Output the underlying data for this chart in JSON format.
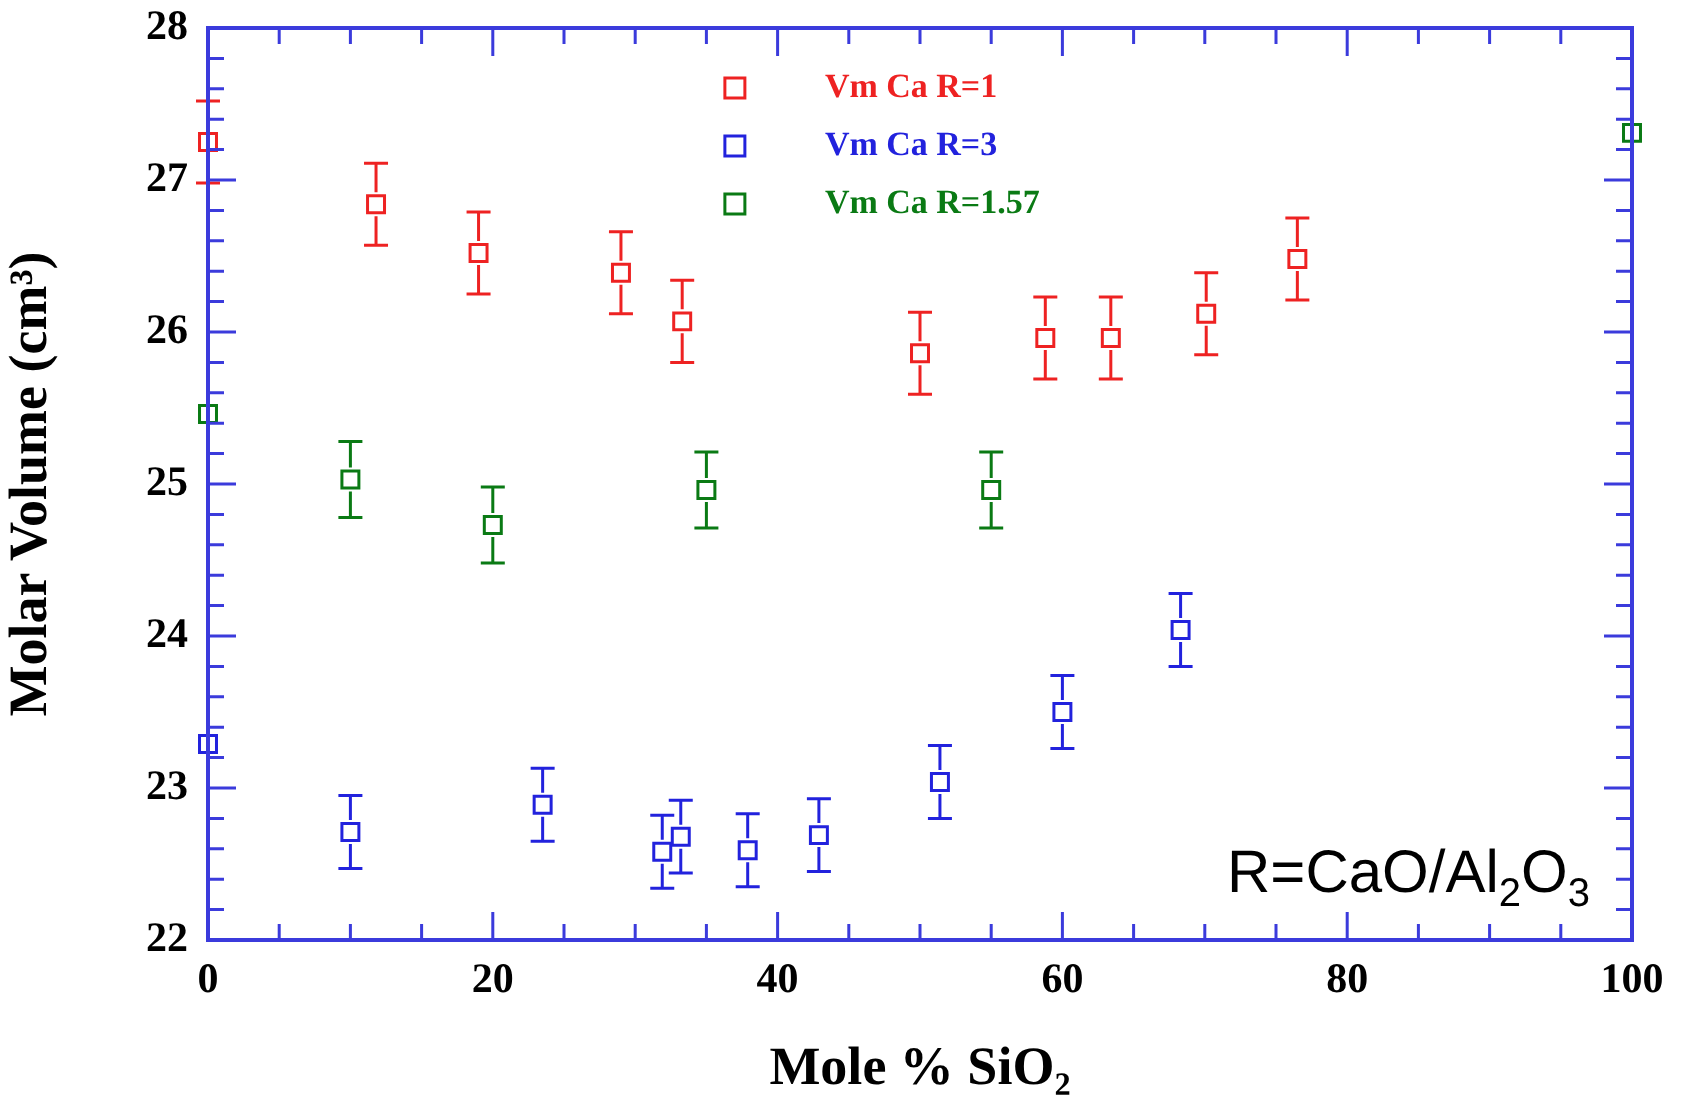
{
  "chart_data": {
    "type": "scatter",
    "xlabel": "Mole % SiO₂",
    "ylabel": "Molar Volume (cm³)",
    "xlim": [
      0,
      100
    ],
    "ylim": [
      22,
      28
    ],
    "xticks": [
      0,
      {
        "value": 5,
        "label": null
      },
      {
        "value": 10,
        "label": null
      },
      {
        "value": 15,
        "label": null
      },
      20,
      {
        "value": 25,
        "label": null
      },
      {
        "value": 30,
        "label": null
      },
      {
        "value": 35,
        "label": null
      },
      40,
      {
        "value": 45,
        "label": null
      },
      {
        "value": 50,
        "label": null
      },
      {
        "value": 55,
        "label": null
      },
      60,
      {
        "value": 65,
        "label": null
      },
      {
        "value": 70,
        "label": null
      },
      {
        "value": 75,
        "label": null
      },
      80,
      {
        "value": 85,
        "label": null
      },
      {
        "value": 90,
        "label": null
      },
      {
        "value": 95,
        "label": null
      },
      100
    ],
    "yticks": [
      22,
      {
        "value": 22.2,
        "label": null
      },
      {
        "value": 22.4,
        "label": null
      },
      {
        "value": 22.6,
        "label": null
      },
      {
        "value": 22.8,
        "label": null
      },
      23,
      {
        "value": 23.2,
        "label": null
      },
      {
        "value": 23.4,
        "label": null
      },
      {
        "value": 23.6,
        "label": null
      },
      {
        "value": 23.8,
        "label": null
      },
      24,
      {
        "value": 24.2,
        "label": null
      },
      {
        "value": 24.4,
        "label": null
      },
      {
        "value": 24.6,
        "label": null
      },
      {
        "value": 24.8,
        "label": null
      },
      25,
      {
        "value": 25.2,
        "label": null
      },
      {
        "value": 25.4,
        "label": null
      },
      {
        "value": 25.6,
        "label": null
      },
      {
        "value": 25.8,
        "label": null
      },
      26,
      {
        "value": 26.2,
        "label": null
      },
      {
        "value": 26.4,
        "label": null
      },
      {
        "value": 26.6,
        "label": null
      },
      {
        "value": 26.8,
        "label": null
      },
      27,
      {
        "value": 27.2,
        "label": null
      },
      {
        "value": 27.4,
        "label": null
      },
      {
        "value": 27.6,
        "label": null
      },
      {
        "value": 27.8,
        "label": null
      },
      28
    ],
    "grid": false,
    "legend": "top",
    "marker": "square",
    "series": [
      {
        "name": "Vm Ca R=1",
        "color": "#ee2222",
        "x": [
          0,
          11.8,
          19,
          29,
          33.3,
          50,
          58.8,
          63.4,
          70.1,
          76.5
        ],
        "values": [
          27.25,
          26.84,
          26.52,
          26.39,
          26.07,
          25.86,
          25.96,
          25.96,
          26.12,
          26.48
        ],
        "errors": [
          0.27,
          0.27,
          0.27,
          0.27,
          0.27,
          0.27,
          0.27,
          0.27,
          0.27,
          0.27
        ]
      },
      {
        "name": "Vm Ca R=3",
        "color": "#2222dd",
        "x": [
          0,
          10,
          23.5,
          31.9,
          33.2,
          37.9,
          42.9,
          51.4,
          60,
          68.3
        ],
        "values": [
          23.29,
          22.71,
          22.89,
          22.58,
          22.68,
          22.59,
          22.69,
          23.04,
          23.5,
          24.04
        ],
        "errors": [
          null,
          0.24,
          0.24,
          0.24,
          0.24,
          0.24,
          0.24,
          0.24,
          0.24,
          0.24
        ]
      },
      {
        "name": "Vm Ca R=1.57",
        "color": "#0a7a14",
        "x": [
          0,
          10,
          20,
          35,
          55,
          100
        ],
        "values": [
          25.46,
          25.03,
          24.73,
          24.96,
          24.96,
          27.31
        ],
        "errors": [
          null,
          0.25,
          0.25,
          0.25,
          0.25,
          null
        ]
      }
    ],
    "annotations": [
      "R=CaO/Al$_{2}$O$_{3}$"
    ]
  }
}
